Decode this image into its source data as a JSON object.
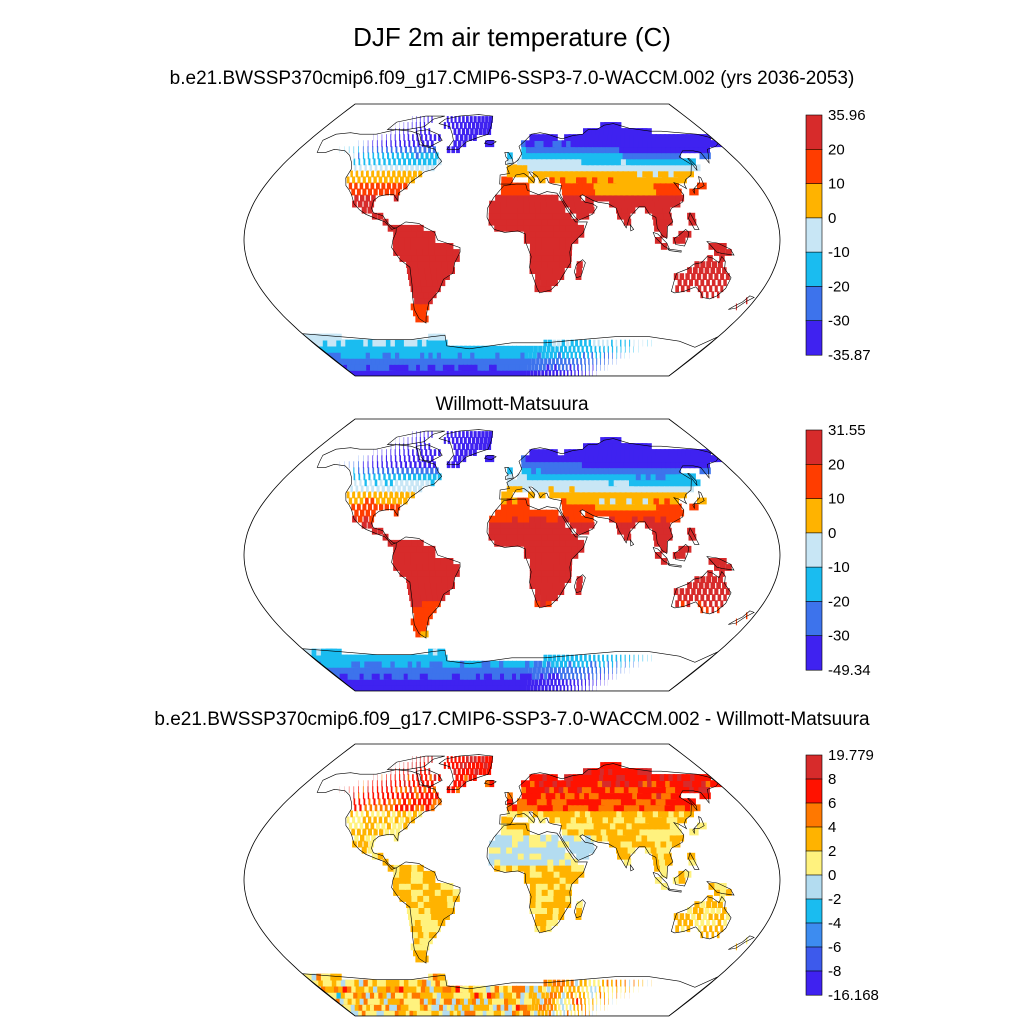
{
  "title": "DJF 2m air temperature (C)",
  "panels": [
    {
      "title": "b.e21.BWSSP370cmip6.f09_g17.CMIP6-SSP3-7.0-WACCM.002 (yrs 2036-2053)",
      "colorbar": {
        "labels": [
          "35.96",
          "20",
          "10",
          "0",
          "-10",
          "-20",
          "-30",
          "-35.87"
        ],
        "colors": [
          "#d72b2b",
          "#ff3d00",
          "#ffb300",
          "#c8e6f5",
          "#1abcf0",
          "#3d73ec",
          "#3f22f0"
        ]
      },
      "scheme": "abs1"
    },
    {
      "title": "Willmott-Matsuura",
      "colorbar": {
        "labels": [
          "31.55",
          "20",
          "10",
          "0",
          "-10",
          "-20",
          "-30",
          "-49.34"
        ],
        "colors": [
          "#d72b2b",
          "#ff3d00",
          "#ffb300",
          "#c8e6f5",
          "#1abcf0",
          "#3d73ec",
          "#3f22f0"
        ]
      },
      "scheme": "abs2"
    },
    {
      "title": "b.e21.BWSSP370cmip6.f09_g17.CMIP6-SSP3-7.0-WACCM.002 - Willmott-Matsuura",
      "colorbar": {
        "labels": [
          "19.779",
          "8",
          "6",
          "4",
          "2",
          "0",
          "-2",
          "-4",
          "-6",
          "-8",
          "-16.168"
        ],
        "colors": [
          "#d72b2b",
          "#ff1200",
          "#ff7800",
          "#ffb300",
          "#fff27e",
          "#b3dcf0",
          "#1abcf0",
          "#3d8cf0",
          "#3d5aec",
          "#3f22f0"
        ]
      },
      "scheme": "diff"
    }
  ]
}
